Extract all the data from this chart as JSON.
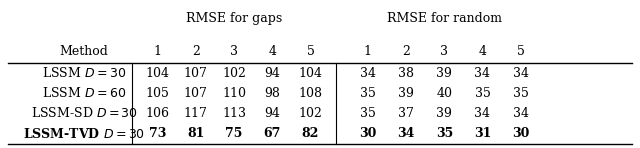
{
  "title": "RMSE for gaps",
  "title2": "RMSE for random",
  "rows": [
    {
      "method": "LSSM $D = 30$",
      "gaps": [
        104,
        107,
        102,
        94,
        104
      ],
      "random": [
        34,
        38,
        39,
        34,
        34
      ],
      "bold": false
    },
    {
      "method": "LSSM $D = 60$",
      "gaps": [
        105,
        107,
        110,
        98,
        108
      ],
      "random": [
        35,
        39,
        40,
        35,
        35
      ],
      "bold": false
    },
    {
      "method": "LSSM-SD $D = 30$",
      "gaps": [
        106,
        117,
        113,
        94,
        102
      ],
      "random": [
        35,
        37,
        39,
        34,
        34
      ],
      "bold": false
    },
    {
      "method": "LSSM-TVD $D = 30$",
      "gaps": [
        73,
        81,
        75,
        67,
        82
      ],
      "random": [
        30,
        34,
        35,
        31,
        30
      ],
      "bold": true
    }
  ],
  "figsize": [
    6.4,
    1.48
  ],
  "dpi": 100,
  "fontsize": 9
}
